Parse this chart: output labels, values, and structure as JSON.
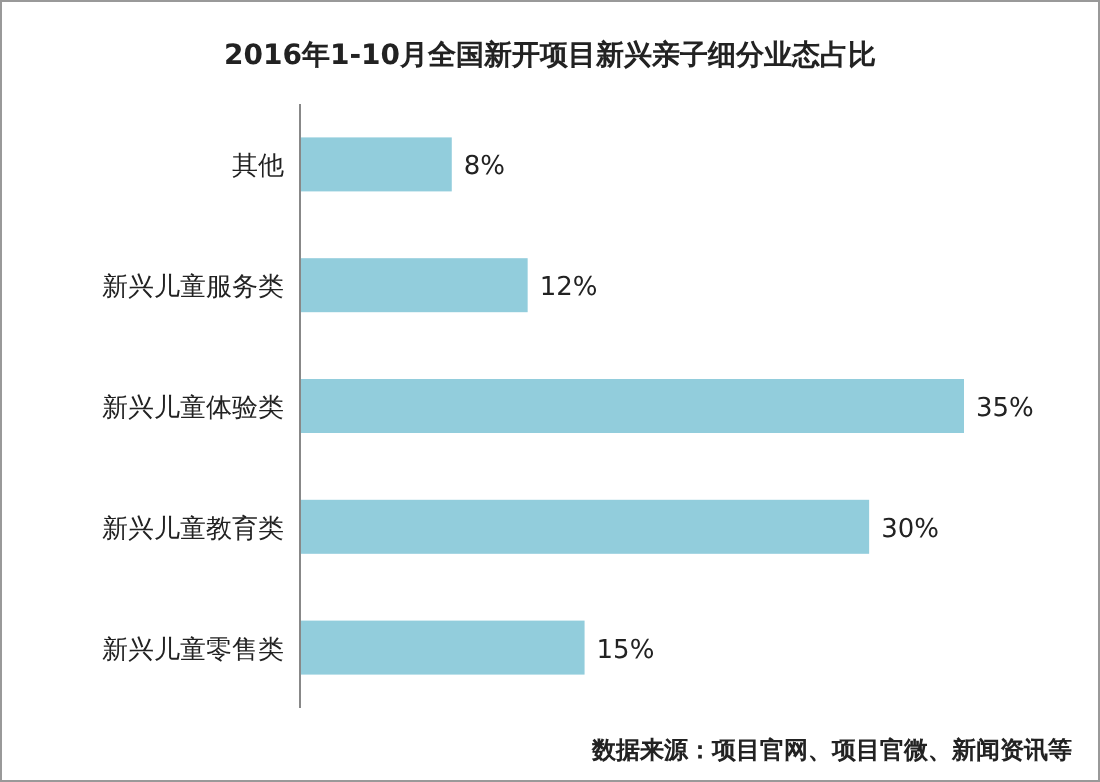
{
  "chart_data": {
    "type": "bar",
    "orientation": "horizontal",
    "title": "2016年1-10月全国新开项目新兴亲子细分业态占比",
    "categories": [
      "其他",
      "新兴儿童服务类",
      "新兴儿童体验类",
      "新兴儿童教育类",
      "新兴儿童零售类"
    ],
    "values": [
      8,
      12,
      35,
      30,
      15
    ],
    "value_labels": [
      "8%",
      "12%",
      "35%",
      "30%",
      "15%"
    ],
    "color": "#92cddc",
    "tick_labels": "y",
    "annotations": [
      "数据来源：项目官网、项目官微、新闻资讯等"
    ]
  }
}
